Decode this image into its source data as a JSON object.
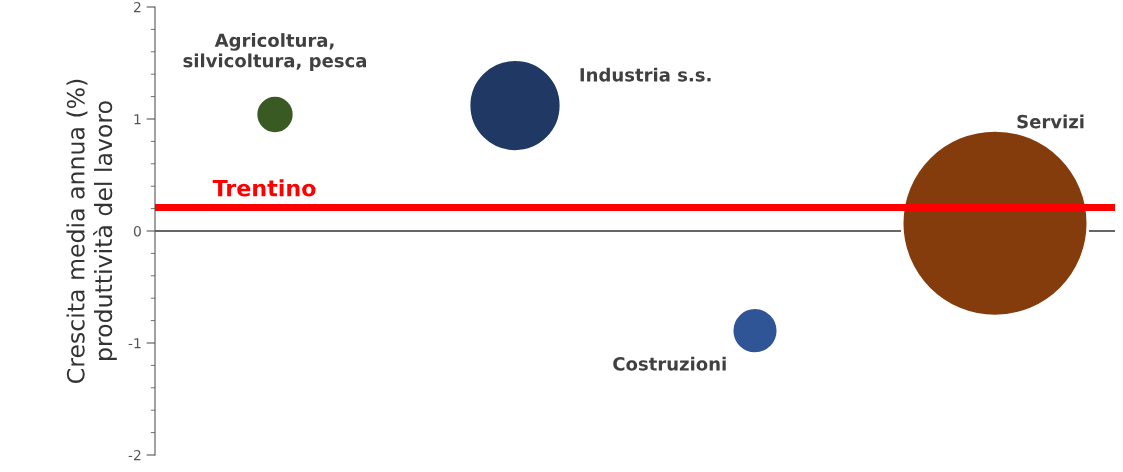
{
  "chart_data": {
    "type": "bubble",
    "ylabel": "Crescita media annua (%)\nproduttività del lavoro",
    "categories": [
      null,
      null,
      null,
      null
    ],
    "ylim": [
      -2,
      2
    ],
    "yticks": [
      {
        "value": -2,
        "label": "-2"
      },
      {
        "value": -1,
        "label": "-1"
      },
      0,
      1,
      2
    ],
    "tick_labels": "y",
    "grid": false,
    "legend": false,
    "series": [
      {
        "name": "Agricoltura,\nsilvicoltura, pesca",
        "color": "#3a5a24",
        "values": [
          1.04,
          null,
          null,
          null
        ],
        "sizes": [
          0.042,
          null,
          null,
          null
        ]
      },
      {
        "name": "Industria s.s.",
        "color": "#1f3864",
        "values": [
          null,
          1.12,
          null,
          null
        ],
        "sizes": [
          null,
          0.245,
          null,
          null
        ]
      },
      {
        "name": "Costruzioni",
        "color": "#2f5597",
        "values": [
          null,
          null,
          -0.89,
          null
        ],
        "sizes": [
          null,
          null,
          0.061,
          null
        ]
      },
      {
        "name": "Servizi",
        "color": "#843c0c",
        "values": [
          null,
          null,
          null,
          0.07
        ],
        "sizes": [
          null,
          null,
          null,
          1
        ]
      }
    ],
    "ref_lines": [
      {
        "axis": "y",
        "value": 0,
        "color": "#333333"
      },
      {
        "axis": "y",
        "value": 0.21,
        "label": "Trentino",
        "color": "#ff0000"
      }
    ]
  }
}
